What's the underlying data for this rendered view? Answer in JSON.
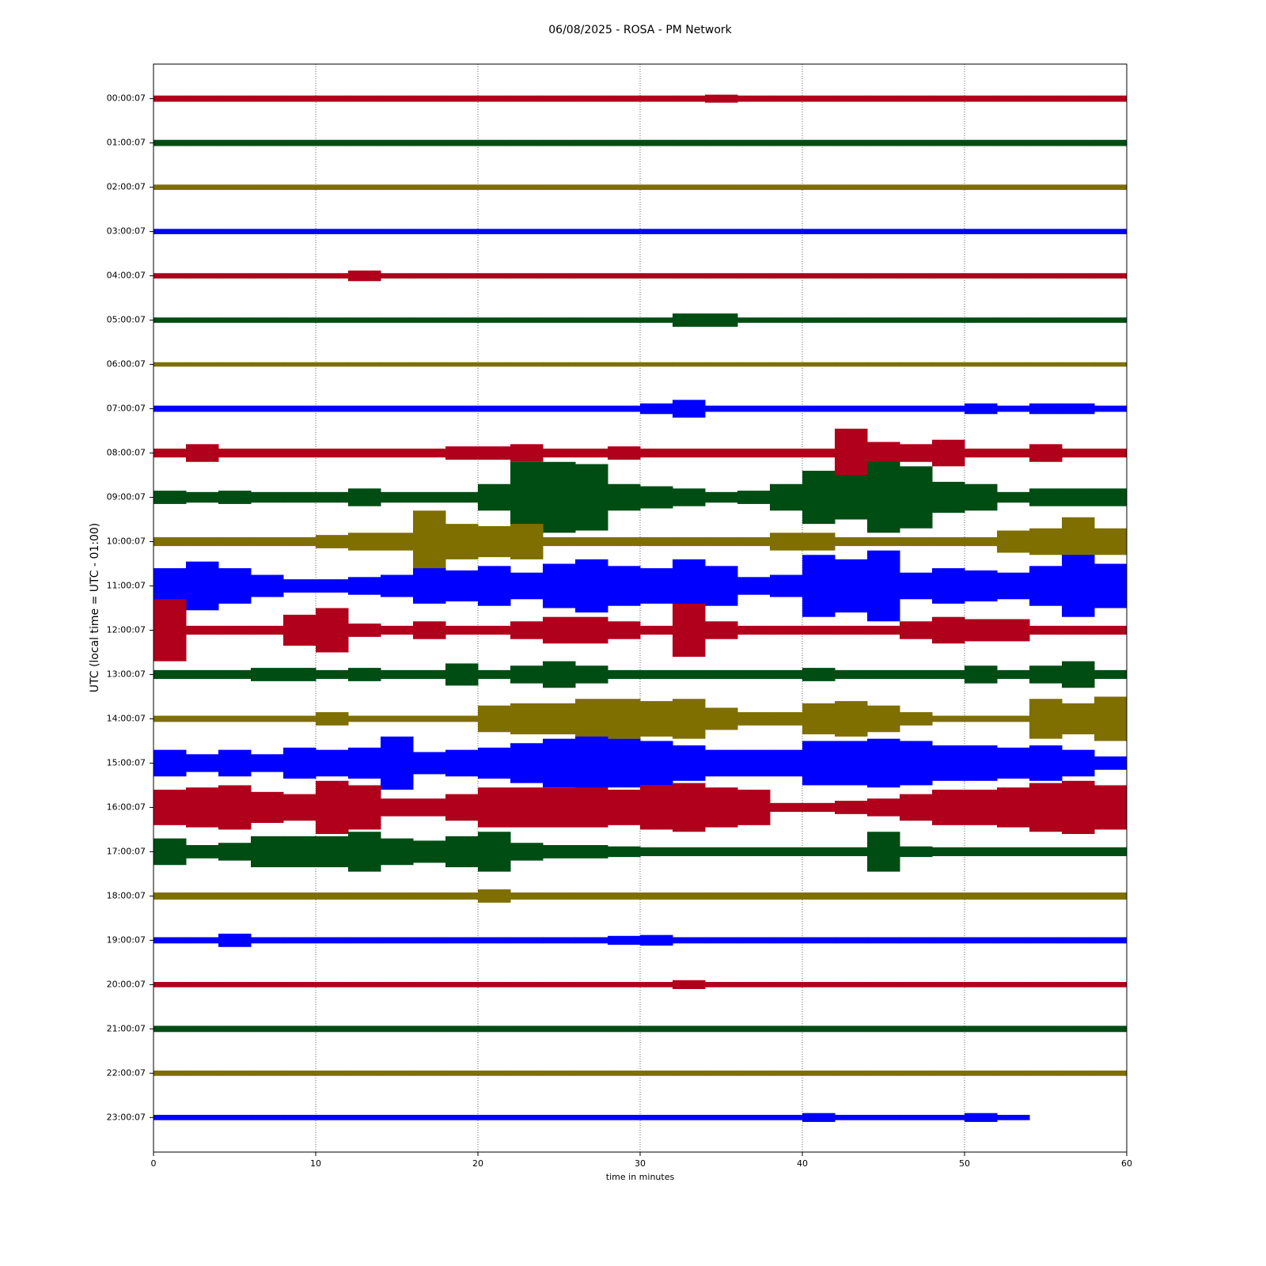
{
  "chart_data": {
    "type": "helicorder",
    "title": "06/08/2025 - ROSA - PM Network",
    "y_label": "UTC (local time = UTC - 01:00)",
    "x_label": "time in minutes",
    "xlim": [
      0,
      60
    ],
    "xticks": [
      0,
      10,
      20,
      30,
      40,
      50,
      60
    ],
    "grid": true,
    "x": [
      1,
      3,
      5,
      7,
      9,
      11,
      13,
      15,
      17,
      19,
      21,
      23,
      25,
      27,
      29,
      31,
      33,
      35,
      37,
      39,
      41,
      43,
      45,
      47,
      49,
      51,
      53,
      55,
      57,
      59
    ],
    "series": [
      {
        "name": "00:00:07",
        "color": "#b0001c",
        "values": [
          0.07,
          0.07,
          0.07,
          0.07,
          0.07,
          0.07,
          0.07,
          0.07,
          0.07,
          0.07,
          0.07,
          0.07,
          0.07,
          0.07,
          0.07,
          0.07,
          0.07,
          0.09,
          0.07,
          0.07,
          0.07,
          0.07,
          0.07,
          0.07,
          0.07,
          0.07,
          0.07,
          0.07,
          0.07,
          0.07
        ]
      },
      {
        "name": "01:00:07",
        "color": "#004d14",
        "values": [
          0.07,
          0.07,
          0.07,
          0.07,
          0.07,
          0.07,
          0.07,
          0.07,
          0.07,
          0.07,
          0.07,
          0.07,
          0.07,
          0.07,
          0.07,
          0.07,
          0.07,
          0.07,
          0.07,
          0.07,
          0.07,
          0.07,
          0.07,
          0.07,
          0.07,
          0.07,
          0.07,
          0.07,
          0.07,
          0.07
        ]
      },
      {
        "name": "02:00:07",
        "color": "#7f6f00",
        "values": [
          0.06,
          0.06,
          0.06,
          0.06,
          0.06,
          0.06,
          0.06,
          0.06,
          0.06,
          0.06,
          0.06,
          0.06,
          0.06,
          0.06,
          0.06,
          0.06,
          0.06,
          0.06,
          0.06,
          0.06,
          0.06,
          0.06,
          0.06,
          0.06,
          0.06,
          0.06,
          0.06,
          0.06,
          0.06,
          0.06
        ]
      },
      {
        "name": "03:00:07",
        "color": "#0000ff",
        "values": [
          0.06,
          0.06,
          0.06,
          0.06,
          0.06,
          0.06,
          0.06,
          0.06,
          0.06,
          0.06,
          0.06,
          0.06,
          0.06,
          0.06,
          0.06,
          0.06,
          0.06,
          0.06,
          0.06,
          0.06,
          0.06,
          0.06,
          0.06,
          0.06,
          0.06,
          0.06,
          0.06,
          0.06,
          0.06,
          0.06
        ]
      },
      {
        "name": "04:00:07",
        "color": "#b0001c",
        "values": [
          0.06,
          0.06,
          0.06,
          0.06,
          0.06,
          0.06,
          0.12,
          0.06,
          0.06,
          0.06,
          0.06,
          0.06,
          0.06,
          0.06,
          0.06,
          0.06,
          0.06,
          0.06,
          0.06,
          0.06,
          0.06,
          0.06,
          0.06,
          0.06,
          0.06,
          0.06,
          0.06,
          0.06,
          0.06,
          0.06
        ]
      },
      {
        "name": "05:00:07",
        "color": "#004d14",
        "values": [
          0.06,
          0.06,
          0.06,
          0.06,
          0.06,
          0.06,
          0.06,
          0.06,
          0.06,
          0.06,
          0.06,
          0.06,
          0.06,
          0.06,
          0.06,
          0.06,
          0.15,
          0.15,
          0.06,
          0.06,
          0.06,
          0.06,
          0.06,
          0.06,
          0.06,
          0.06,
          0.06,
          0.06,
          0.06,
          0.06
        ]
      },
      {
        "name": "06:00:07",
        "color": "#7f6f00",
        "values": [
          0.05,
          0.05,
          0.05,
          0.05,
          0.05,
          0.05,
          0.05,
          0.05,
          0.05,
          0.05,
          0.05,
          0.05,
          0.05,
          0.05,
          0.05,
          0.05,
          0.05,
          0.05,
          0.05,
          0.05,
          0.05,
          0.05,
          0.05,
          0.05,
          0.05,
          0.05,
          0.05,
          0.05,
          0.05,
          0.05
        ]
      },
      {
        "name": "07:00:07",
        "color": "#0000ff",
        "values": [
          0.07,
          0.07,
          0.07,
          0.07,
          0.07,
          0.07,
          0.07,
          0.07,
          0.07,
          0.07,
          0.07,
          0.07,
          0.07,
          0.07,
          0.07,
          0.12,
          0.2,
          0.07,
          0.07,
          0.07,
          0.07,
          0.07,
          0.07,
          0.07,
          0.07,
          0.12,
          0.07,
          0.12,
          0.12,
          0.07
        ]
      },
      {
        "name": "08:00:07",
        "color": "#b0001c",
        "values": [
          0.1,
          0.2,
          0.1,
          0.1,
          0.1,
          0.1,
          0.1,
          0.1,
          0.1,
          0.15,
          0.15,
          0.2,
          0.1,
          0.1,
          0.15,
          0.1,
          0.1,
          0.1,
          0.1,
          0.1,
          0.1,
          0.55,
          0.25,
          0.2,
          0.3,
          0.1,
          0.1,
          0.2,
          0.1,
          0.1
        ]
      },
      {
        "name": "09:00:07",
        "color": "#004d14",
        "values": [
          0.15,
          0.12,
          0.15,
          0.12,
          0.12,
          0.12,
          0.2,
          0.12,
          0.12,
          0.12,
          0.3,
          0.8,
          0.8,
          0.75,
          0.3,
          0.25,
          0.2,
          0.12,
          0.15,
          0.3,
          0.6,
          0.5,
          0.8,
          0.7,
          0.35,
          0.3,
          0.12,
          0.2,
          0.2,
          0.2
        ]
      },
      {
        "name": "10:00:07",
        "color": "#7f6f00",
        "values": [
          0.1,
          0.1,
          0.1,
          0.1,
          0.1,
          0.15,
          0.2,
          0.2,
          0.7,
          0.4,
          0.35,
          0.4,
          0.1,
          0.1,
          0.1,
          0.1,
          0.1,
          0.1,
          0.1,
          0.2,
          0.2,
          0.1,
          0.1,
          0.1,
          0.1,
          0.1,
          0.25,
          0.3,
          0.55,
          0.3
        ]
      },
      {
        "name": "11:00:07",
        "color": "#0000ff",
        "values": [
          0.4,
          0.55,
          0.4,
          0.25,
          0.15,
          0.15,
          0.2,
          0.25,
          0.4,
          0.35,
          0.45,
          0.3,
          0.5,
          0.6,
          0.45,
          0.4,
          0.6,
          0.45,
          0.2,
          0.25,
          0.7,
          0.6,
          0.8,
          0.3,
          0.4,
          0.35,
          0.3,
          0.45,
          0.7,
          0.5
        ]
      },
      {
        "name": "12:00:07",
        "color": "#b0001c",
        "values": [
          0.7,
          0.1,
          0.1,
          0.1,
          0.35,
          0.5,
          0.15,
          0.1,
          0.2,
          0.1,
          0.1,
          0.2,
          0.3,
          0.3,
          0.2,
          0.1,
          0.6,
          0.2,
          0.1,
          0.1,
          0.1,
          0.1,
          0.1,
          0.2,
          0.3,
          0.25,
          0.25,
          0.1,
          0.1,
          0.1
        ]
      },
      {
        "name": "13:00:07",
        "color": "#004d14",
        "values": [
          0.1,
          0.1,
          0.1,
          0.15,
          0.15,
          0.1,
          0.15,
          0.1,
          0.1,
          0.25,
          0.1,
          0.2,
          0.3,
          0.2,
          0.1,
          0.1,
          0.1,
          0.1,
          0.1,
          0.1,
          0.15,
          0.1,
          0.1,
          0.1,
          0.1,
          0.2,
          0.1,
          0.2,
          0.3,
          0.1
        ]
      },
      {
        "name": "14:00:07",
        "color": "#7f6f00",
        "values": [
          0.07,
          0.07,
          0.07,
          0.07,
          0.07,
          0.15,
          0.07,
          0.07,
          0.07,
          0.07,
          0.3,
          0.35,
          0.35,
          0.45,
          0.45,
          0.4,
          0.45,
          0.25,
          0.15,
          0.15,
          0.35,
          0.4,
          0.3,
          0.15,
          0.07,
          0.07,
          0.07,
          0.45,
          0.35,
          0.5
        ]
      },
      {
        "name": "15:00:07",
        "color": "#0000ff",
        "values": [
          0.3,
          0.2,
          0.3,
          0.2,
          0.35,
          0.3,
          0.35,
          0.6,
          0.25,
          0.3,
          0.35,
          0.45,
          0.55,
          0.6,
          0.55,
          0.5,
          0.4,
          0.3,
          0.3,
          0.3,
          0.5,
          0.5,
          0.55,
          0.5,
          0.4,
          0.4,
          0.35,
          0.4,
          0.3,
          0.15
        ]
      },
      {
        "name": "16:00:07",
        "color": "#b0001c",
        "values": [
          0.4,
          0.45,
          0.5,
          0.35,
          0.3,
          0.6,
          0.5,
          0.2,
          0.2,
          0.3,
          0.45,
          0.45,
          0.45,
          0.45,
          0.4,
          0.5,
          0.55,
          0.45,
          0.4,
          0.1,
          0.1,
          0.15,
          0.2,
          0.3,
          0.4,
          0.4,
          0.45,
          0.55,
          0.6,
          0.5
        ]
      },
      {
        "name": "17:00:07",
        "color": "#004d14",
        "values": [
          0.3,
          0.15,
          0.2,
          0.35,
          0.35,
          0.35,
          0.45,
          0.3,
          0.25,
          0.35,
          0.45,
          0.2,
          0.15,
          0.15,
          0.12,
          0.1,
          0.1,
          0.1,
          0.1,
          0.1,
          0.1,
          0.1,
          0.45,
          0.12,
          0.1,
          0.1,
          0.1,
          0.1,
          0.1,
          0.1
        ]
      },
      {
        "name": "18:00:07",
        "color": "#7f6f00",
        "values": [
          0.08,
          0.08,
          0.08,
          0.08,
          0.08,
          0.08,
          0.08,
          0.08,
          0.08,
          0.08,
          0.15,
          0.08,
          0.08,
          0.08,
          0.08,
          0.08,
          0.08,
          0.08,
          0.08,
          0.08,
          0.08,
          0.08,
          0.08,
          0.08,
          0.08,
          0.08,
          0.08,
          0.08,
          0.08,
          0.08
        ]
      },
      {
        "name": "19:00:07",
        "color": "#0000ff",
        "values": [
          0.07,
          0.07,
          0.15,
          0.07,
          0.07,
          0.07,
          0.07,
          0.07,
          0.07,
          0.07,
          0.07,
          0.07,
          0.07,
          0.07,
          0.1,
          0.12,
          0.07,
          0.07,
          0.07,
          0.07,
          0.07,
          0.07,
          0.07,
          0.07,
          0.07,
          0.07,
          0.07,
          0.07,
          0.07,
          0.07
        ]
      },
      {
        "name": "20:00:07",
        "color": "#b0001c",
        "values": [
          0.06,
          0.06,
          0.06,
          0.06,
          0.06,
          0.06,
          0.06,
          0.06,
          0.06,
          0.06,
          0.06,
          0.06,
          0.06,
          0.06,
          0.06,
          0.06,
          0.1,
          0.06,
          0.06,
          0.06,
          0.06,
          0.06,
          0.06,
          0.06,
          0.06,
          0.06,
          0.06,
          0.06,
          0.06,
          0.06
        ]
      },
      {
        "name": "21:00:07",
        "color": "#004d14",
        "values": [
          0.07,
          0.07,
          0.07,
          0.07,
          0.07,
          0.07,
          0.07,
          0.07,
          0.07,
          0.07,
          0.07,
          0.07,
          0.07,
          0.07,
          0.07,
          0.07,
          0.07,
          0.07,
          0.07,
          0.07,
          0.07,
          0.07,
          0.07,
          0.07,
          0.07,
          0.07,
          0.07,
          0.07,
          0.07,
          0.07
        ]
      },
      {
        "name": "22:00:07",
        "color": "#7f6f00",
        "values": [
          0.06,
          0.06,
          0.06,
          0.06,
          0.06,
          0.06,
          0.06,
          0.06,
          0.06,
          0.06,
          0.06,
          0.06,
          0.06,
          0.06,
          0.06,
          0.06,
          0.06,
          0.06,
          0.06,
          0.06,
          0.06,
          0.06,
          0.06,
          0.06,
          0.06,
          0.06,
          0.06,
          0.06,
          0.06,
          0.06
        ]
      },
      {
        "name": "23:00:07",
        "color": "#0000ff",
        "values": [
          0.06,
          0.06,
          0.06,
          0.06,
          0.06,
          0.06,
          0.06,
          0.06,
          0.06,
          0.06,
          0.06,
          0.06,
          0.06,
          0.06,
          0.06,
          0.06,
          0.06,
          0.06,
          0.06,
          0.06,
          0.1,
          0.06,
          0.06,
          0.06,
          0.06,
          0.1,
          0.06,
          null,
          null,
          null
        ]
      }
    ]
  }
}
